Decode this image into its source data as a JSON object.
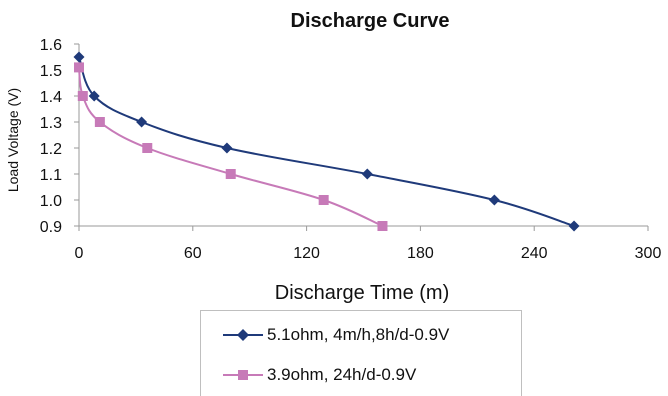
{
  "chart_data": {
    "type": "line",
    "title": "Discharge Curve",
    "xlabel": "Discharge Time (m)",
    "ylabel": "Load Voltage (V)",
    "xlim": [
      0,
      300
    ],
    "ylim": [
      0.9,
      1.6
    ],
    "xticks": [
      "0",
      "60",
      "120",
      "180",
      "240",
      "300"
    ],
    "yticks": [
      "0.9",
      "1.0",
      "1.1",
      "1.2",
      "1.3",
      "1.4",
      "1.5",
      "1.6"
    ],
    "grid": false,
    "legend_position": "bottom",
    "series": [
      {
        "name": "5.1ohm, 4m/h,8h/d-0.9V",
        "color": "#1f3a7a",
        "marker": "diamond",
        "x": [
          0,
          8,
          33,
          78,
          152,
          219,
          261
        ],
        "y": [
          1.55,
          1.4,
          1.3,
          1.2,
          1.1,
          1.0,
          0.9
        ]
      },
      {
        "name": "3.9ohm, 24h/d-0.9V",
        "color": "#c77ab8",
        "marker": "square",
        "x": [
          0,
          2,
          11,
          36,
          80,
          129,
          160
        ],
        "y": [
          1.51,
          1.4,
          1.3,
          1.2,
          1.1,
          1.0,
          0.9
        ]
      }
    ]
  }
}
